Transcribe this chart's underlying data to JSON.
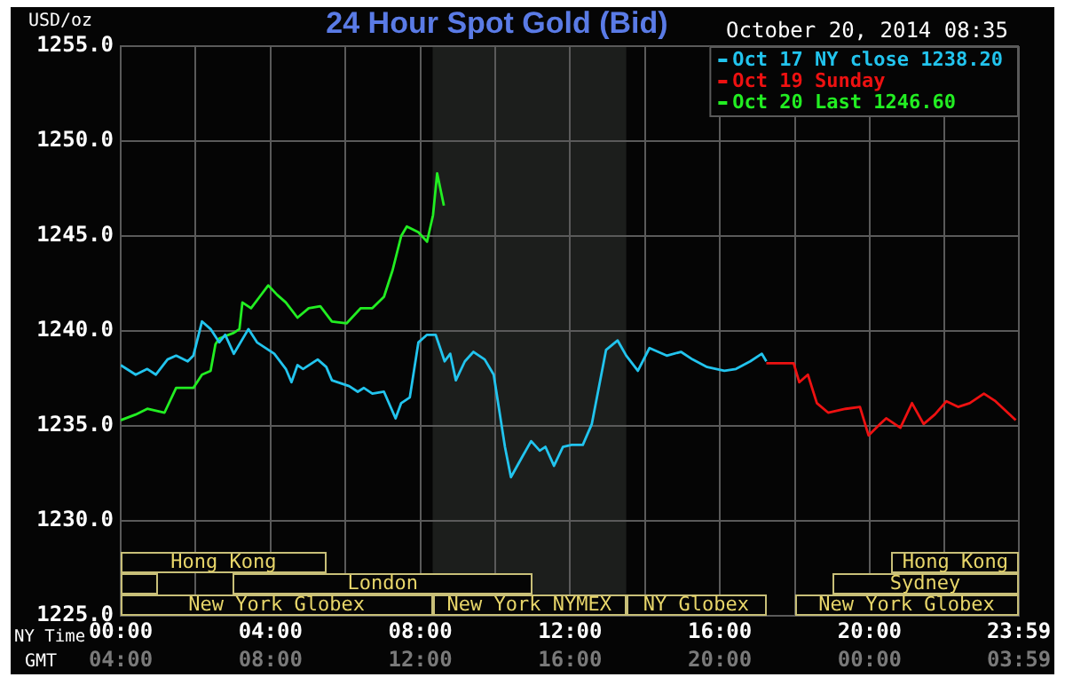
{
  "chart_data": {
    "type": "line",
    "title": "24 Hour Spot Gold (Bid)",
    "subtitle": "October 20, 2014 08:35",
    "ylabel": "USD/oz",
    "xlabel": "NY Time",
    "x2label": "GMT",
    "xlim": [
      0,
      23.983
    ],
    "xticks": [
      {
        "value": 0,
        "label": "00:00"
      },
      {
        "value": 2,
        "label": null
      },
      {
        "value": 4,
        "label": "04:00"
      },
      {
        "value": 6,
        "label": null
      },
      {
        "value": 8,
        "label": "08:00"
      },
      {
        "value": 10,
        "label": null
      },
      {
        "value": 12,
        "label": "12:00"
      },
      {
        "value": 14,
        "label": null
      },
      {
        "value": 16,
        "label": "16:00"
      },
      {
        "value": 18,
        "label": null
      },
      {
        "value": 20,
        "label": "20:00"
      },
      {
        "value": 22,
        "label": null
      },
      {
        "value": 23.983,
        "label": "23:59"
      }
    ],
    "x2lim": [
      "2014-10-20T04:00",
      "2014-10-21T03:59"
    ],
    "x2ticks": [
      {
        "value": "2014-10-20T04:00",
        "label": "04:00"
      },
      {
        "value": "2014-10-20T08:00",
        "label": "08:00"
      },
      {
        "value": "2014-10-20T12:00",
        "label": "12:00"
      },
      {
        "value": "2014-10-20T16:00",
        "label": "16:00"
      },
      {
        "value": "2014-10-20T20:00",
        "label": "20:00"
      },
      {
        "value": "2014-10-21T00:00",
        "label": "00:00"
      },
      {
        "value": "2014-10-21T03:59",
        "label": "03:59"
      }
    ],
    "ylim": [
      1225,
      1255
    ],
    "yticks": [
      {
        "value": 1225,
        "label": "1225.0"
      },
      {
        "value": 1230,
        "label": "1230.0"
      },
      {
        "value": 1235,
        "label": "1235.0"
      },
      {
        "value": 1240,
        "label": "1240.0"
      },
      {
        "value": 1245,
        "label": "1245.0"
      },
      {
        "value": 1250,
        "label": "1250.0"
      },
      {
        "value": 1255,
        "label": "1255.0"
      }
    ],
    "grid": true,
    "legend": "top right",
    "marker": "none",
    "bands": [
      {
        "axis": "x",
        "from": 8.33,
        "to": 13.5,
        "color": "#1c1e1c"
      }
    ],
    "annotations": [
      "Hong Kong",
      "Hong Kong",
      "London",
      "Sydney",
      "New York Globex",
      "New York NYMEX",
      "NY Globex",
      "New York Globex"
    ],
    "series": [
      {
        "name": "Oct 17 NY close 1238.20",
        "color": "#22c4ee",
        "x": [
          0,
          0.4,
          0.71,
          0.94,
          1.25,
          1.48,
          1.79,
          1.94,
          2.17,
          2.4,
          2.63,
          2.79,
          3.02,
          3.41,
          3.64,
          4.1,
          4.41,
          4.56,
          4.72,
          4.87,
          5.26,
          5.49,
          5.64,
          6.1,
          6.33,
          6.49,
          6.72,
          7.03,
          7.34,
          7.49,
          7.72,
          7.95,
          8.18,
          8.41,
          8.65,
          8.8,
          8.95,
          9.19,
          9.42,
          9.72,
          9.96,
          10.26,
          10.42,
          10.73,
          10.96,
          11.19,
          11.34,
          11.57,
          11.81,
          12.04,
          12.34,
          12.58,
          12.96,
          13.27,
          13.5,
          13.81,
          14.12,
          14.58,
          14.96,
          15.27,
          15.66,
          16.12,
          16.43,
          16.81,
          17.12,
          17.24
        ],
        "values": [
          1238.2,
          1237.7,
          1238.0,
          1237.7,
          1238.5,
          1238.7,
          1238.4,
          1238.7,
          1240.5,
          1240.1,
          1239.4,
          1239.8,
          1238.8,
          1240.1,
          1239.4,
          1238.8,
          1238.0,
          1237.3,
          1238.2,
          1238.0,
          1238.5,
          1238.1,
          1237.4,
          1237.1,
          1236.8,
          1237.0,
          1236.7,
          1236.8,
          1235.4,
          1236.2,
          1236.5,
          1239.4,
          1239.8,
          1239.8,
          1238.4,
          1238.8,
          1237.4,
          1238.4,
          1238.9,
          1238.5,
          1237.7,
          1233.9,
          1232.3,
          1233.4,
          1234.2,
          1233.7,
          1233.9,
          1232.9,
          1233.9,
          1234.0,
          1234.0,
          1235.1,
          1239.0,
          1239.5,
          1238.7,
          1237.9,
          1239.1,
          1238.7,
          1238.9,
          1238.5,
          1238.1,
          1237.9,
          1238.0,
          1238.4,
          1238.8,
          1238.4
        ]
      },
      {
        "name": "Oct 19 Sunday",
        "color": "#ee1111",
        "x": [
          17.24,
          17.97,
          18.12,
          18.35,
          18.59,
          18.89,
          19.36,
          19.74,
          19.97,
          20.28,
          20.44,
          20.82,
          21.13,
          21.44,
          21.74,
          22.05,
          22.36,
          22.67,
          23.05,
          23.36,
          23.9
        ],
        "values": [
          1238.3,
          1238.3,
          1237.3,
          1237.7,
          1236.2,
          1235.7,
          1235.9,
          1236.0,
          1234.5,
          1235.1,
          1235.4,
          1234.9,
          1236.2,
          1235.1,
          1235.6,
          1236.3,
          1236.0,
          1236.2,
          1236.7,
          1236.3,
          1235.3
        ]
      },
      {
        "name": "Oct 20 Last 1246.60",
        "color": "#22ee22",
        "x": [
          0,
          0.4,
          0.71,
          1.17,
          1.48,
          1.94,
          2.17,
          2.4,
          2.53,
          2.63,
          3.02,
          3.17,
          3.25,
          3.48,
          3.71,
          3.94,
          4.18,
          4.41,
          4.72,
          5.02,
          5.33,
          5.64,
          6.03,
          6.41,
          6.72,
          7.03,
          7.26,
          7.49,
          7.64,
          7.95,
          8.18,
          8.34,
          8.45,
          8.63
        ],
        "values": [
          1235.3,
          1235.6,
          1235.9,
          1235.7,
          1237.0,
          1237.0,
          1237.7,
          1237.9,
          1239.3,
          1239.6,
          1239.9,
          1240.1,
          1241.5,
          1241.2,
          1241.8,
          1242.4,
          1241.9,
          1241.5,
          1240.7,
          1241.2,
          1241.3,
          1240.5,
          1240.4,
          1241.2,
          1241.2,
          1241.8,
          1243.2,
          1245.0,
          1245.5,
          1245.2,
          1244.7,
          1246.1,
          1248.3,
          1246.6
        ]
      }
    ]
  }
}
